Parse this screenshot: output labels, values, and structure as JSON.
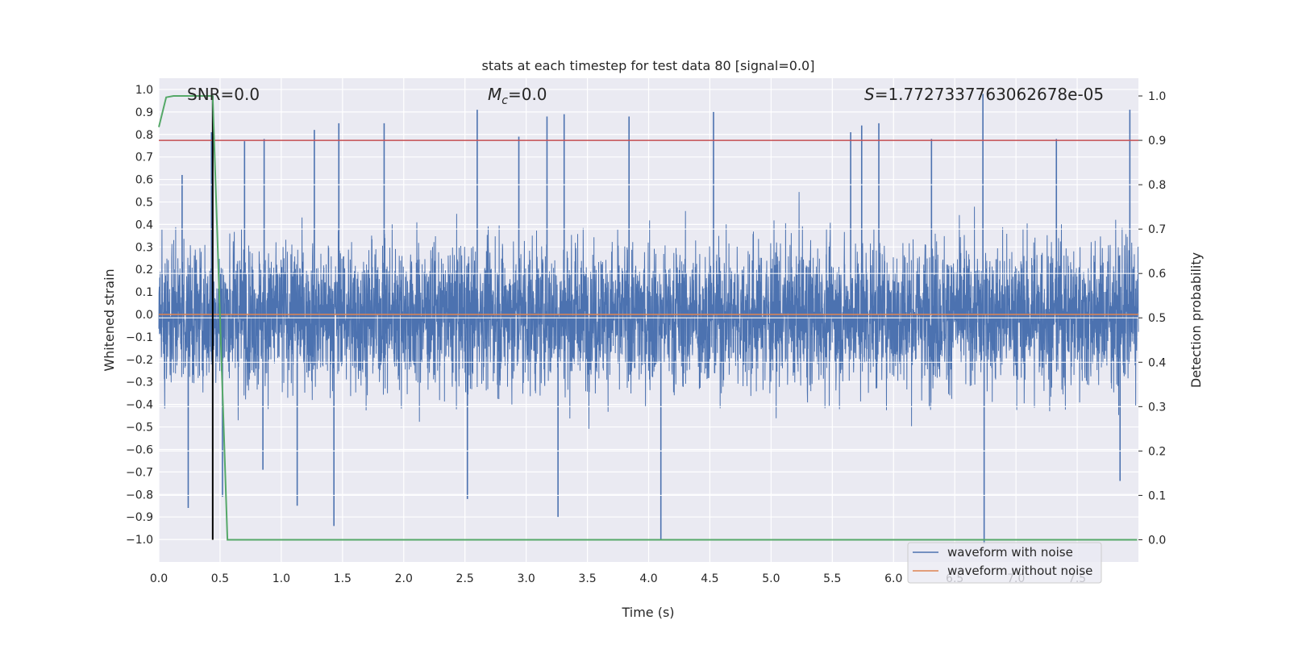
{
  "chart_data": {
    "type": "line",
    "title": "stats at each timestep for test data 80 [signal=0.0]",
    "xlabel": "Time (s)",
    "ylabel": "Whitened strain",
    "ylabel_right": "Detection probability",
    "xlim": [
      0.0,
      8.0
    ],
    "ylim": [
      -1.1,
      1.05
    ],
    "ylim_right": [
      -0.05,
      1.04
    ],
    "x_ticks": [
      "0.0",
      "0.5",
      "1.0",
      "1.5",
      "2.0",
      "2.5",
      "3.0",
      "3.5",
      "4.0",
      "4.5",
      "5.0",
      "5.5",
      "6.0",
      "6.5",
      "7.0",
      "7.5"
    ],
    "y_ticks": [
      "1.0",
      "0.9",
      "0.8",
      "0.7",
      "0.6",
      "0.5",
      "0.4",
      "0.3",
      "0.2",
      "0.1",
      "0.0",
      "−0.1",
      "−0.2",
      "−0.3",
      "−0.4",
      "−0.5",
      "−0.6",
      "−0.7",
      "−0.8",
      "−0.9",
      "−1.0"
    ],
    "y_right_ticks": [
      "1.0",
      "0.9",
      "0.8",
      "0.7",
      "0.6",
      "0.5",
      "0.4",
      "0.3",
      "0.2",
      "0.1",
      "0.0"
    ],
    "annotations": {
      "snr_text": "SNR=0.0",
      "mc_symbol": "M",
      "mc_sub": "c",
      "mc_value": "=0.0",
      "s_symbol": "S",
      "s_value": "=1.7727337763062678e-05"
    },
    "threshold": {
      "axis": "right",
      "value": 0.9,
      "color": "#c44e52"
    },
    "marker_time": 0.44,
    "noise": {
      "name": "waveform with noise",
      "color": "#4c72b0",
      "typical_range": [
        -0.45,
        0.45
      ],
      "peaks_pos": [
        [
          0.19,
          0.62
        ],
        [
          0.43,
          0.81
        ],
        [
          0.7,
          0.77
        ],
        [
          0.86,
          0.78
        ],
        [
          1.27,
          0.82
        ],
        [
          1.47,
          0.85
        ],
        [
          1.84,
          0.85
        ],
        [
          2.6,
          0.91
        ],
        [
          2.94,
          0.79
        ],
        [
          3.17,
          0.88
        ],
        [
          3.31,
          0.89
        ],
        [
          3.84,
          0.88
        ],
        [
          4.53,
          0.9
        ],
        [
          5.65,
          0.81
        ],
        [
          5.74,
          0.84
        ],
        [
          5.88,
          0.85
        ],
        [
          6.31,
          0.78
        ],
        [
          6.73,
          0.98
        ],
        [
          7.33,
          0.78
        ],
        [
          7.93,
          0.91
        ]
      ],
      "peaks_neg": [
        [
          0.24,
          -0.86
        ],
        [
          0.52,
          -0.81
        ],
        [
          0.85,
          -0.69
        ],
        [
          1.13,
          -0.85
        ],
        [
          1.43,
          -0.94
        ],
        [
          2.52,
          -0.82
        ],
        [
          3.26,
          -0.9
        ],
        [
          4.1,
          -1.0
        ],
        [
          6.74,
          -1.02
        ],
        [
          7.85,
          -0.74
        ]
      ]
    },
    "clean": {
      "name": "waveform without noise",
      "color": "#dd8452",
      "value": 0.0
    },
    "probability": {
      "color": "#55a868",
      "x": [
        0.0,
        0.06,
        0.12,
        0.44,
        0.56,
        7.99
      ],
      "y": [
        0.93,
        0.997,
        1.0,
        1.0,
        0.0,
        0.0
      ]
    },
    "legend": {
      "position": "bottom-right",
      "entries": [
        "waveform with noise",
        "waveform without noise"
      ]
    }
  }
}
